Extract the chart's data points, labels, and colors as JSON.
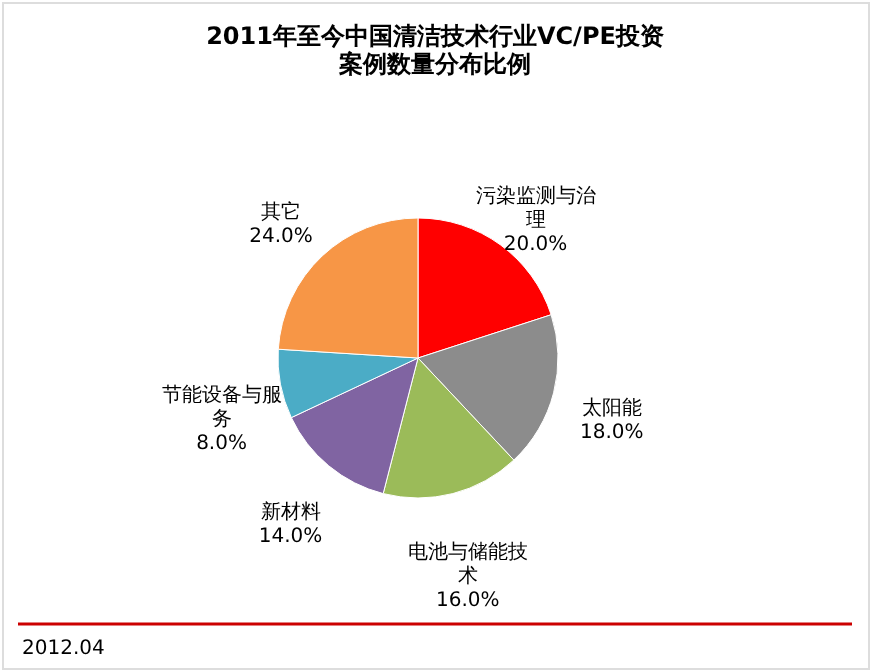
{
  "chart_data": {
    "type": "pie",
    "title": "2011年至今中国清洁技术行业VC/PE投资案例数量分布比例",
    "categories": [
      "污染监测与治理",
      "太阳能",
      "电池与储能技术",
      "新材料",
      "节能设备与服务",
      "其它"
    ],
    "values": [
      20,
      18,
      16,
      14,
      8,
      24
    ],
    "colors": [
      "#ff0000",
      "#8c8c8c",
      "#9bbb59",
      "#8064a2",
      "#4bacc6",
      "#f79646"
    ],
    "value_labels": [
      "20.0%",
      "18.0%",
      "16.0%",
      "14.0%",
      "8.0%",
      "24.0%"
    ],
    "annotations": [
      "2012.04"
    ]
  }
}
